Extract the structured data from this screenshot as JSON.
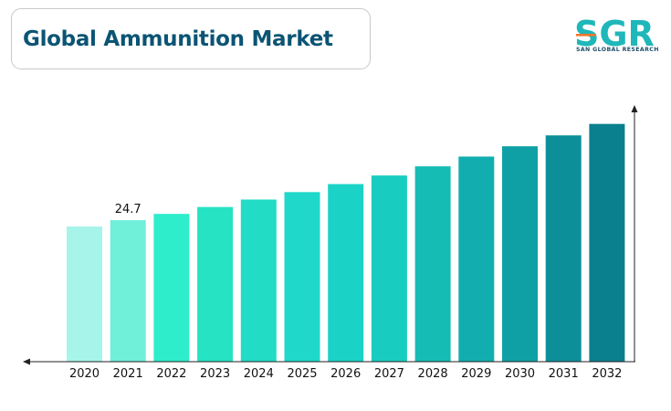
{
  "header": {
    "title": "Global Ammunition Market"
  },
  "logo": {
    "name": "SGR",
    "subtitle": "SAN GLOBAL RESEARCH",
    "colors": {
      "text": "#1fb7b9",
      "accent": "#f0762a"
    }
  },
  "chart_data": {
    "type": "bar",
    "title": "",
    "xlabel": "",
    "ylabel": "",
    "categories": [
      "2020",
      "2021",
      "2022",
      "2023",
      "2024",
      "2025",
      "2026",
      "2027",
      "2028",
      "2029",
      "2030",
      "2031",
      "2032"
    ],
    "values": [
      23.6,
      24.7,
      25.8,
      27.0,
      28.3,
      29.6,
      31.0,
      32.5,
      34.1,
      35.8,
      37.6,
      39.5,
      41.5
    ],
    "data_labels": [
      {
        "index": 1,
        "text": "24.7"
      }
    ],
    "colors": [
      "#a7f5ea",
      "#70efd9",
      "#2eedca",
      "#26e3c4",
      "#22dcc6",
      "#1fd8c9",
      "#1ad3c6",
      "#18cdbf",
      "#15bcb4",
      "#12aeaf",
      "#0fa0a5",
      "#0d8f9a",
      "#0a7f8e"
    ],
    "ylim": [
      0,
      44
    ],
    "y_axis_visible": true,
    "grid": false
  }
}
